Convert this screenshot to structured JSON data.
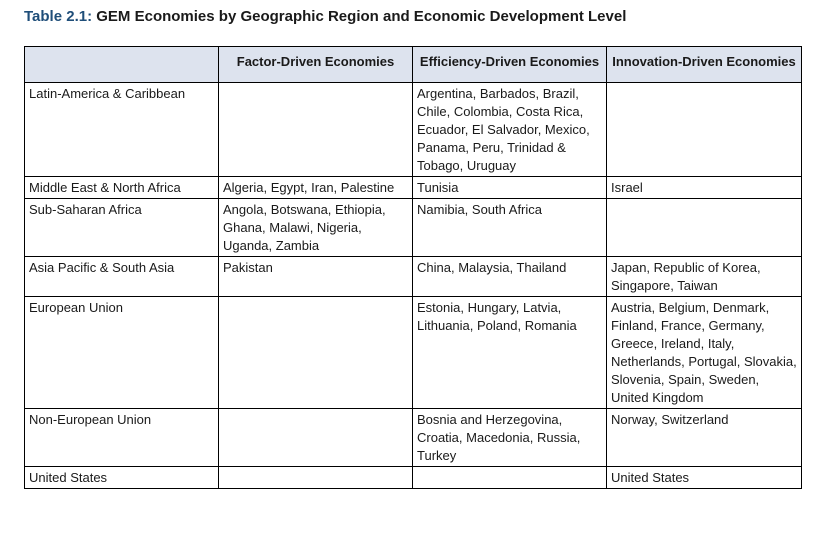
{
  "title": {
    "label": "Table 2.1:",
    "text": " GEM Economies by Geographic Region and Economic Development Level"
  },
  "table": {
    "headers": [
      "",
      "Factor-Driven Economies",
      "Efficiency-Driven Economies",
      "Innovation-Driven Economies"
    ],
    "rows": [
      {
        "region": "Latin-America & Caribbean",
        "factor": "",
        "efficiency": "Argentina, Barbados, Brazil, Chile, Colombia, Costa Rica, Ecuador, El Salvador, Mexico, Panama, Peru, Trinidad & Tobago, Uruguay",
        "innovation": ""
      },
      {
        "region": "Middle East & North Africa",
        "factor": "Algeria, Egypt, Iran, Palestine",
        "efficiency": "Tunisia",
        "innovation": "Israel"
      },
      {
        "region": "Sub-Saharan Africa",
        "factor": "Angola, Botswana, Ethiopia, Ghana, Malawi, Nigeria, Uganda, Zambia",
        "efficiency": "Namibia, South Africa",
        "innovation": ""
      },
      {
        "region": "Asia Pacific & South Asia",
        "factor": "Pakistan",
        "efficiency": "China, Malaysia, Thailand",
        "innovation": "Japan, Republic of Korea, Singapore, Taiwan"
      },
      {
        "region": "European Union",
        "factor": "",
        "efficiency": "Estonia, Hungary, Latvia, Lithuania, Poland, Romania",
        "innovation": "Austria, Belgium, Denmark, Finland, France, Germany, Greece, Ireland, Italy, Netherlands, Portugal, Slovakia, Slovenia, Spain, Sweden, United Kingdom"
      },
      {
        "region": "Non-European Union",
        "factor": "",
        "efficiency": "Bosnia and Herzegovina, Croatia, Macedonia, Russia, Turkey",
        "innovation": "Norway, Switzerland"
      },
      {
        "region": "United States",
        "factor": "",
        "efficiency": "",
        "innovation": "United States"
      }
    ]
  },
  "colors": {
    "title_label": "#1f4e79",
    "header_bg": "#dde3ee",
    "border": "#000000"
  }
}
